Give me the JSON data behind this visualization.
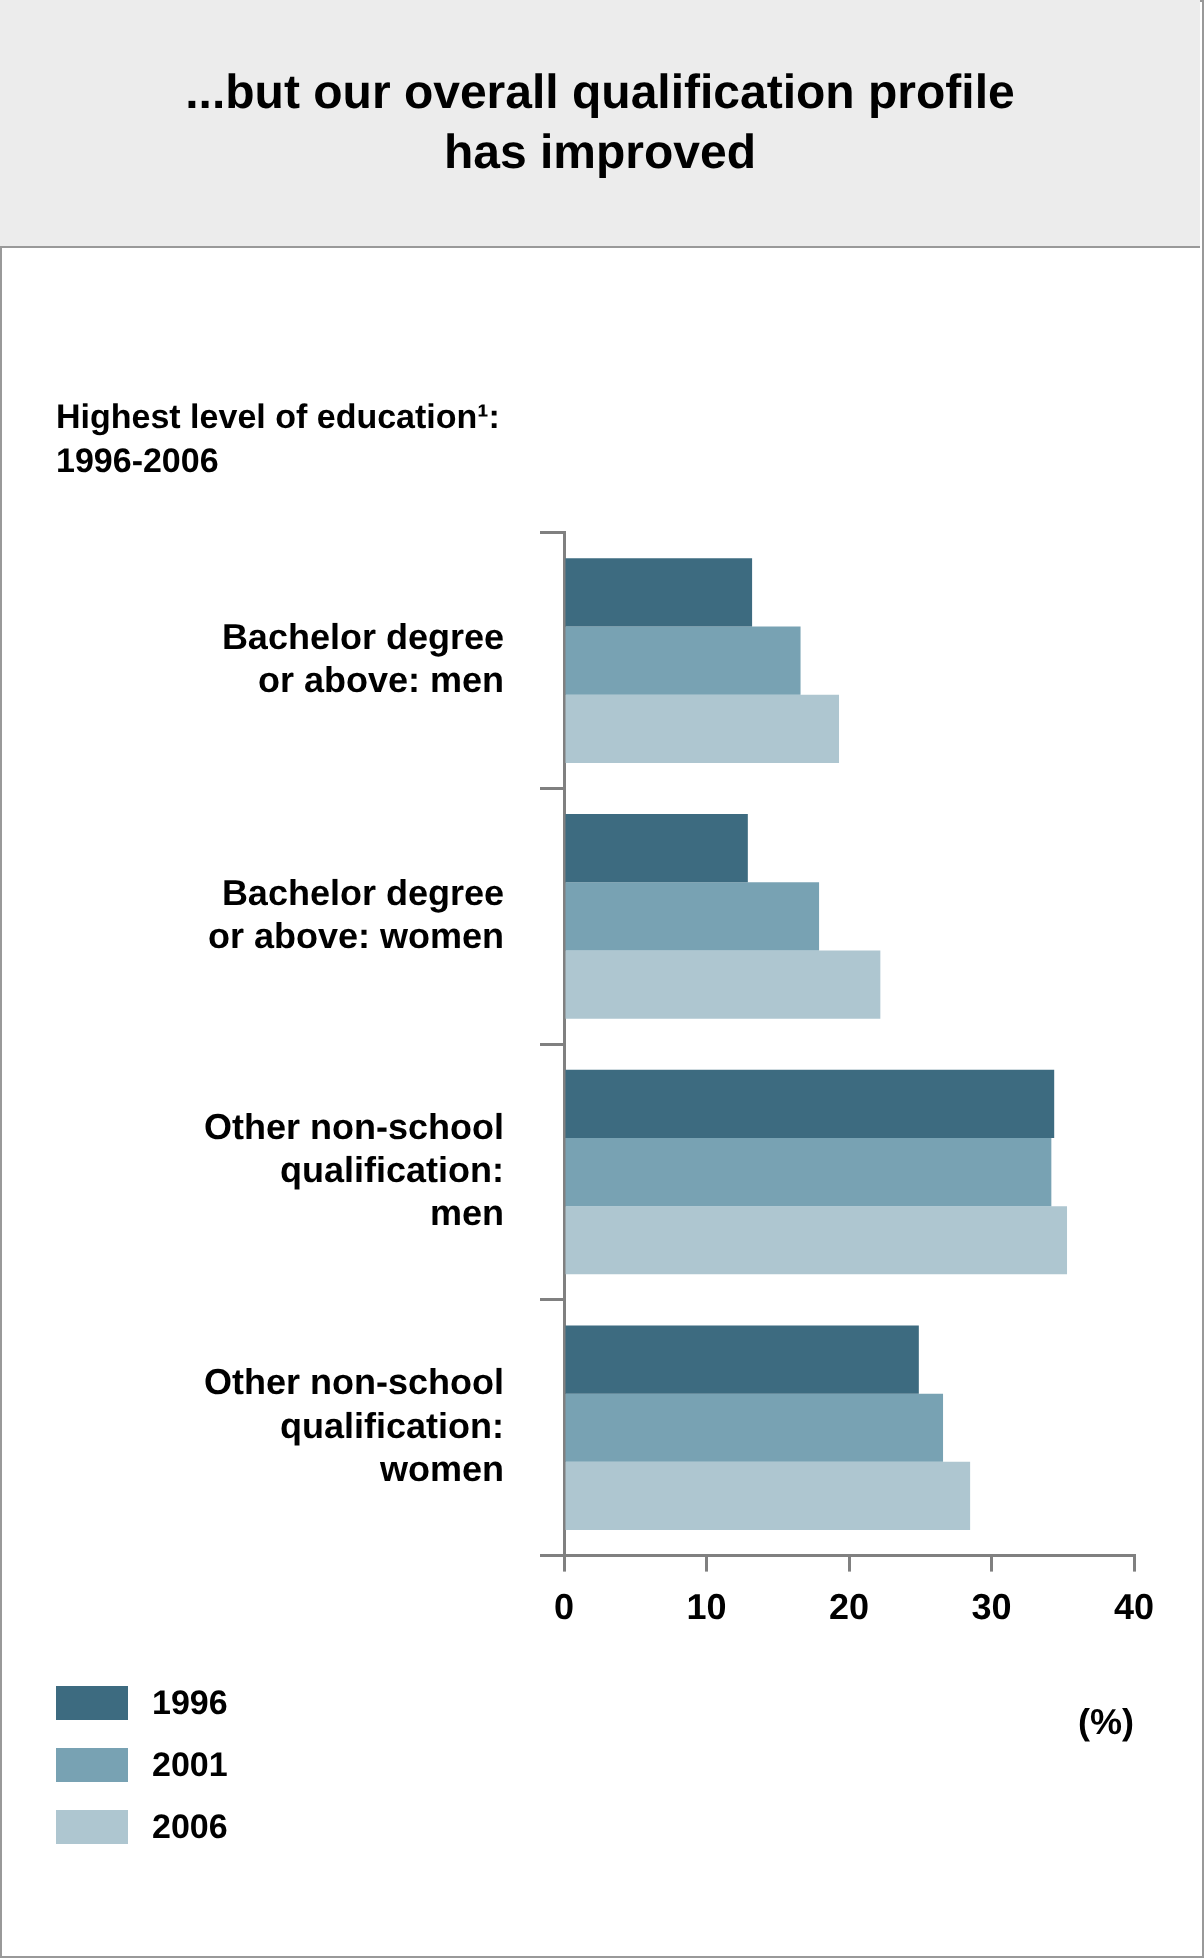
{
  "chart_data": {
    "type": "bar",
    "orientation": "horizontal",
    "title": "...but our overall qualification profile has improved",
    "subtitle": "Highest level of education¹: 1996-2006",
    "xlabel": "(%)",
    "categories": [
      "Bachelor degree or above: men",
      "Bachelor degree or above: women",
      "Other non-school qualification: men",
      "Other non-school qualification: women"
    ],
    "series": [
      {
        "name": "1996",
        "color": "#3d6b80",
        "values": [
          13.2,
          12.9,
          34.4,
          24.9
        ]
      },
      {
        "name": "2001",
        "color": "#78a2b3",
        "values": [
          16.6,
          17.9,
          34.2,
          26.6
        ]
      },
      {
        "name": "2006",
        "color": "#aec6d0",
        "values": [
          19.3,
          22.2,
          35.3,
          28.5
        ]
      }
    ],
    "xlim": [
      0,
      40
    ],
    "xticks": [
      0,
      10,
      20,
      30,
      40
    ],
    "legend": "bottom left"
  }
}
